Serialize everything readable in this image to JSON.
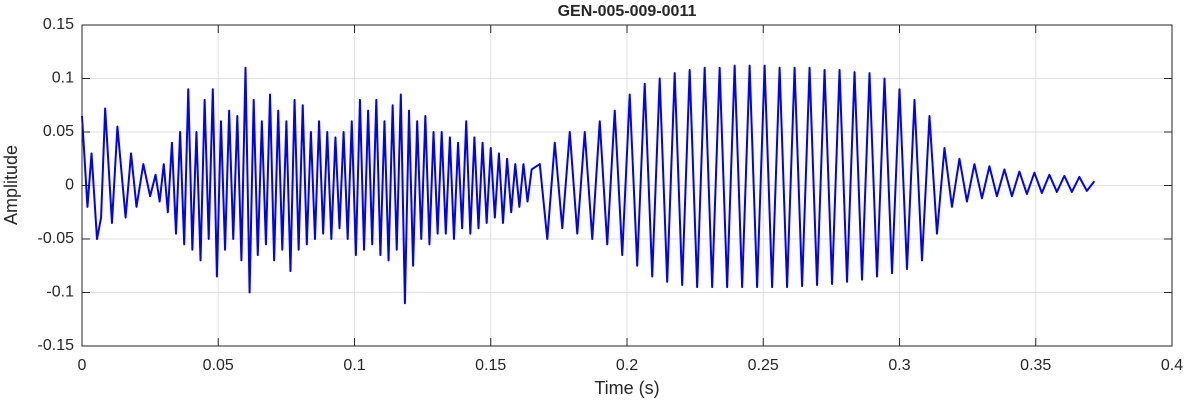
{
  "chart_data": {
    "type": "line",
    "title": "GEN-005-009-0011",
    "xlabel": "Time (s)",
    "ylabel": "Amplitude",
    "xlim": [
      0,
      0.4
    ],
    "ylim": [
      -0.15,
      0.15
    ],
    "xticks": [
      0,
      0.05,
      0.1,
      0.15,
      0.2,
      0.25,
      0.3,
      0.35,
      0.4
    ],
    "yticks": [
      -0.15,
      -0.1,
      -0.05,
      0,
      0.05,
      0.1,
      0.15
    ],
    "grid": true,
    "series": [
      {
        "color": "#0000ff",
        "x": [
          0,
          0.002,
          0.0035,
          0.0055,
          0.007,
          0.0085,
          0.011,
          0.013,
          0.016,
          0.018,
          0.02,
          0.0225,
          0.025,
          0.027,
          0.0285,
          0.03,
          0.0315,
          0.033,
          0.0345,
          0.036,
          0.0375,
          0.039,
          0.0405,
          0.042,
          0.0435,
          0.045,
          0.0465,
          0.048,
          0.0495,
          0.051,
          0.0525,
          0.054,
          0.0555,
          0.057,
          0.0585,
          0.06,
          0.0615,
          0.063,
          0.0645,
          0.066,
          0.0675,
          0.069,
          0.0705,
          0.072,
          0.0735,
          0.075,
          0.0765,
          0.078,
          0.0795,
          0.081,
          0.0825,
          0.084,
          0.0855,
          0.087,
          0.0885,
          0.09,
          0.0915,
          0.093,
          0.0945,
          0.096,
          0.0975,
          0.099,
          0.1005,
          0.102,
          0.1035,
          0.105,
          0.1065,
          0.108,
          0.1095,
          0.111,
          0.1125,
          0.114,
          0.1155,
          0.117,
          0.1185,
          0.12,
          0.1215,
          0.123,
          0.1245,
          0.126,
          0.1275,
          0.129,
          0.1305,
          0.132,
          0.1335,
          0.135,
          0.1365,
          0.138,
          0.1395,
          0.141,
          0.1425,
          0.144,
          0.1455,
          0.147,
          0.1485,
          0.15,
          0.1515,
          0.153,
          0.1545,
          0.156,
          0.1575,
          0.159,
          0.1605,
          0.162,
          0.1635,
          0.165,
          0.168,
          0.17075,
          0.1735,
          0.17625,
          0.179,
          0.18175,
          0.1845,
          0.18725,
          0.19,
          0.19275,
          0.1955,
          0.19825,
          0.201,
          0.20375,
          0.2065,
          0.20925,
          0.212,
          0.21475,
          0.2175,
          0.22025,
          0.223,
          0.22575,
          0.2285,
          0.23125,
          0.234,
          0.23675,
          0.2395,
          0.24225,
          0.245,
          0.24775,
          0.2505,
          0.25325,
          0.256,
          0.25875,
          0.2615,
          0.26425,
          0.267,
          0.26975,
          0.2725,
          0.27525,
          0.278,
          0.28075,
          0.2835,
          0.28625,
          0.289,
          0.29175,
          0.2945,
          0.29725,
          0.3,
          0.30275,
          0.3055,
          0.30825,
          0.311,
          0.31375,
          0.3165,
          0.31925,
          0.322,
          0.32475,
          0.3275,
          0.33025,
          0.333,
          0.33575,
          0.3385,
          0.34125,
          0.344,
          0.34675,
          0.3495,
          0.35225,
          0.355,
          0.35775,
          0.3605,
          0.36325,
          0.366,
          0.36875,
          0.3715
        ],
        "values": [
          0.065,
          -0.02,
          0.03,
          -0.05,
          -0.03,
          0.072,
          -0.035,
          0.055,
          -0.03,
          0.03,
          -0.02,
          0.02,
          -0.01,
          0.01,
          -0.015,
          0.02,
          -0.025,
          0.04,
          -0.045,
          0.05,
          -0.055,
          0.09,
          -0.06,
          0.05,
          -0.07,
          0.08,
          -0.05,
          0.09,
          -0.085,
          0.06,
          -0.06,
          0.07,
          -0.05,
          0.065,
          -0.07,
          0.11,
          -0.1,
          0.08,
          -0.065,
          0.06,
          -0.055,
          0.085,
          -0.07,
          0.07,
          -0.06,
          0.06,
          -0.08,
          0.08,
          -0.06,
          0.075,
          -0.055,
          0.05,
          -0.05,
          0.06,
          -0.045,
          0.05,
          -0.05,
          0.045,
          -0.04,
          0.05,
          -0.05,
          0.06,
          -0.065,
          0.08,
          -0.06,
          0.07,
          -0.055,
          0.08,
          -0.065,
          0.06,
          -0.07,
          0.075,
          -0.06,
          0.085,
          -0.11,
          0.07,
          -0.075,
          0.06,
          -0.05,
          0.065,
          -0.055,
          0.05,
          -0.045,
          0.05,
          -0.045,
          0.045,
          -0.05,
          0.04,
          -0.04,
          0.06,
          -0.045,
          0.045,
          -0.04,
          0.04,
          -0.035,
          0.035,
          -0.03,
          0.03,
          -0.035,
          0.025,
          -0.025,
          0.02,
          -0.02,
          0.02,
          -0.015,
          0.015,
          0.02,
          -0.05,
          0.04,
          -0.04,
          0.05,
          -0.045,
          0.05,
          -0.05,
          0.06,
          -0.055,
          0.07,
          -0.065,
          0.085,
          -0.075,
          0.095,
          -0.085,
          0.1,
          -0.09,
          0.105,
          -0.093,
          0.108,
          -0.095,
          0.11,
          -0.095,
          0.11,
          -0.095,
          0.112,
          -0.095,
          0.112,
          -0.095,
          0.112,
          -0.095,
          0.11,
          -0.095,
          0.11,
          -0.094,
          0.11,
          -0.093,
          0.108,
          -0.092,
          0.108,
          -0.09,
          0.106,
          -0.088,
          0.105,
          -0.085,
          0.1,
          -0.082,
          0.09,
          -0.078,
          0.08,
          -0.07,
          0.065,
          -0.045,
          0.035,
          -0.02,
          0.025,
          -0.015,
          0.02,
          -0.012,
          0.018,
          -0.01,
          0.015,
          -0.01,
          0.013,
          -0.008,
          0.012,
          -0.007,
          0.01,
          -0.006,
          0.009,
          -0.006,
          0.008,
          -0.005,
          0.004
        ]
      }
    ]
  }
}
